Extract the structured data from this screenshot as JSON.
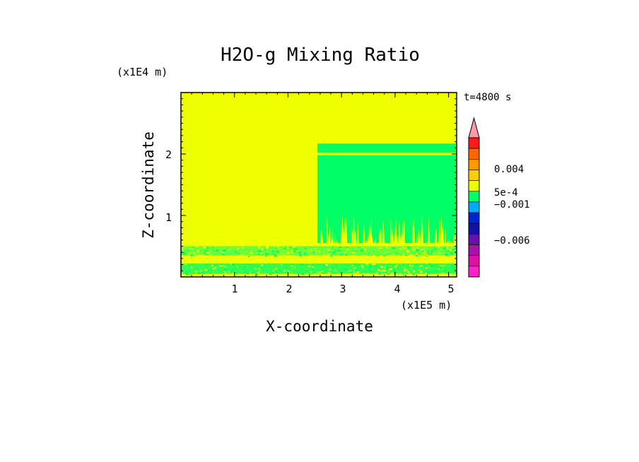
{
  "chart_data": {
    "type": "heatmap",
    "title": "H2O-g Mixing Ratio",
    "xlabel": "X-coordinate",
    "ylabel": "Z-coordinate",
    "x_scale_label": "(x1E5 m)",
    "y_scale_label": "(x1E4 m)",
    "time_label": "t=4800 s",
    "x_ticks": [
      "1",
      "2",
      "3",
      "4",
      "5"
    ],
    "y_ticks": [
      "1",
      "2"
    ],
    "xlim": [
      0,
      5.15
    ],
    "ylim": [
      0,
      3.0
    ],
    "colorbar": {
      "labels": [
        "0.004",
        "5e-4",
        "−0.001",
        "−0.006"
      ],
      "colors": [
        "#ff99aa",
        "#ff1a1a",
        "#ff6600",
        "#ff9900",
        "#ffcc00",
        "#eeff00",
        "#00ff66",
        "#00aaff",
        "#0022cc",
        "#1111aa",
        "#6611aa",
        "#aa11aa",
        "#dd11aa",
        "#ff22cc"
      ]
    },
    "regions": {
      "background_color": "#eeff00",
      "green_color": "#00ff66",
      "green_block_x": [
        2.55,
        5.15
      ],
      "green_block_z": [
        0.55,
        2.17
      ],
      "yellow_stripe_z": [
        1.98,
        2.02
      ],
      "lower_band_z": [
        0.35,
        0.5
      ],
      "bottom_band_z": [
        0.05,
        0.22
      ]
    }
  }
}
